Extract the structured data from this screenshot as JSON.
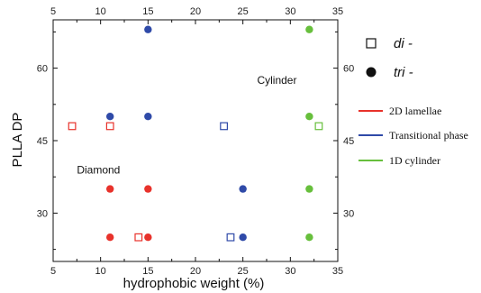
{
  "chart_data": {
    "type": "scatter",
    "xlabel": "hydrophobic weight (%)",
    "ylabel": "PLLA  DP",
    "xlim": [
      5,
      35
    ],
    "ylim": [
      20,
      70
    ],
    "xticks": [
      5,
      10,
      15,
      20,
      25,
      30,
      35
    ],
    "yticks": [
      30,
      45,
      60
    ],
    "grid": false,
    "colors": {
      "lamellae": "#e8322b",
      "transitional": "#2f4aa8",
      "cylinder": "#67bf3c"
    },
    "annotations": [
      {
        "text": "Cylinder",
        "x": 26.5,
        "y": 56.8
      },
      {
        "text": "Diamond",
        "x": 7.5,
        "y": 38.2
      }
    ],
    "legend": {
      "placement": "right",
      "markers": [
        {
          "label": "di -",
          "marker": "open-square"
        },
        {
          "label": "tri -",
          "marker": "filled-circle"
        }
      ],
      "lines": [
        {
          "label": "2D lamellae",
          "color_key": "lamellae"
        },
        {
          "label": "Transitional phase",
          "color_key": "transitional"
        },
        {
          "label": "1D cylinder",
          "color_key": "cylinder"
        }
      ]
    },
    "series": [
      {
        "phase": "lamellae",
        "marker": "open-square",
        "points": [
          [
            7,
            48
          ],
          [
            11,
            48
          ],
          [
            14,
            25
          ]
        ]
      },
      {
        "phase": "lamellae",
        "marker": "filled-circle",
        "points": [
          [
            11,
            35
          ],
          [
            15,
            35
          ],
          [
            11,
            25
          ],
          [
            15,
            25
          ]
        ]
      },
      {
        "phase": "transitional",
        "marker": "open-square",
        "points": [
          [
            23,
            48
          ],
          [
            23.7,
            25
          ]
        ]
      },
      {
        "phase": "transitional",
        "marker": "filled-circle",
        "points": [
          [
            15,
            68
          ],
          [
            11,
            50
          ],
          [
            15,
            50
          ],
          [
            25,
            35
          ],
          [
            25,
            25
          ]
        ]
      },
      {
        "phase": "cylinder",
        "marker": "open-square",
        "points": [
          [
            33,
            48
          ]
        ]
      },
      {
        "phase": "cylinder",
        "marker": "filled-circle",
        "points": [
          [
            32,
            68
          ],
          [
            32,
            50
          ],
          [
            32,
            35
          ],
          [
            32,
            25
          ]
        ]
      }
    ]
  }
}
